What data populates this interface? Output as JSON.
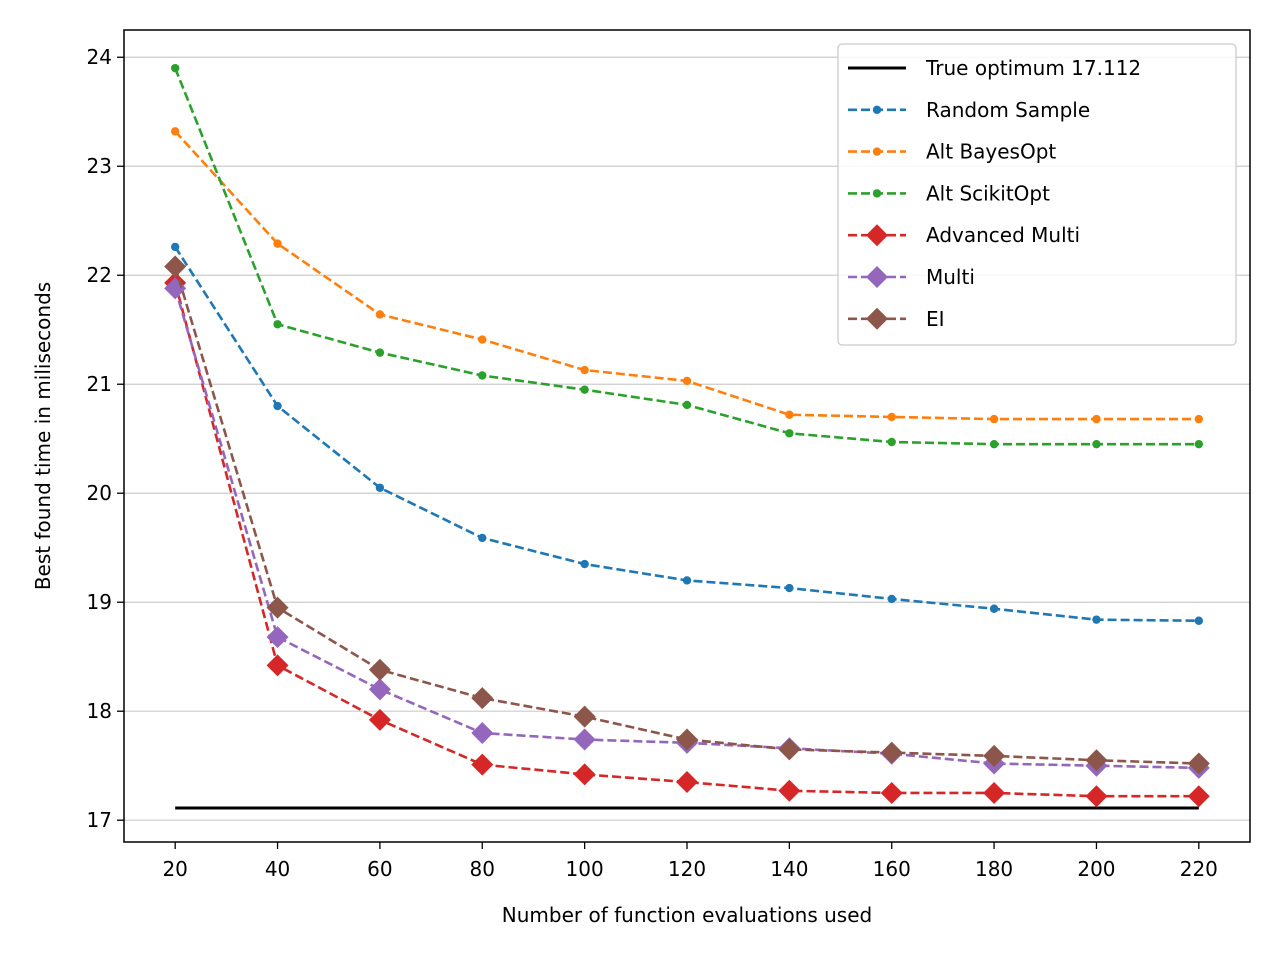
{
  "chart_data": {
    "type": "line",
    "title": "",
    "xlabel": "Number of function evaluations used",
    "ylabel": "Best found time in miliseconds",
    "xlim": [
      10,
      230
    ],
    "ylim": [
      16.8,
      24.25
    ],
    "x_ticks": [
      20,
      40,
      60,
      80,
      100,
      120,
      140,
      160,
      180,
      200,
      220
    ],
    "y_ticks": [
      17,
      18,
      19,
      20,
      21,
      22,
      23,
      24
    ],
    "grid": "horizontal",
    "legend_position": "top-right",
    "x": [
      20,
      40,
      60,
      80,
      100,
      120,
      140,
      160,
      180,
      200,
      220
    ],
    "reference_line": {
      "name": "True optimum 17.112",
      "value": 17.112,
      "x_range": [
        20,
        220
      ],
      "color": "#000000"
    },
    "series": [
      {
        "name": "Random Sample",
        "color": "#1f77b4",
        "marker": "dot",
        "values": [
          22.26,
          20.8,
          20.05,
          19.59,
          19.35,
          19.2,
          19.13,
          19.03,
          18.94,
          18.84,
          18.83
        ]
      },
      {
        "name": "Alt BayesOpt",
        "color": "#ff7f0e",
        "marker": "dot",
        "values": [
          23.32,
          22.29,
          21.64,
          21.41,
          21.13,
          21.03,
          20.72,
          20.7,
          20.68,
          20.68,
          20.68
        ]
      },
      {
        "name": "Alt ScikitOpt",
        "color": "#2ca02c",
        "marker": "dot",
        "values": [
          23.9,
          21.55,
          21.29,
          21.08,
          20.95,
          20.81,
          20.55,
          20.47,
          20.45,
          20.45,
          20.45
        ]
      },
      {
        "name": "Advanced Multi",
        "color": "#d62728",
        "marker": "diamond",
        "values": [
          21.93,
          18.42,
          17.92,
          17.51,
          17.42,
          17.35,
          17.27,
          17.25,
          17.25,
          17.22,
          17.22
        ]
      },
      {
        "name": "Multi",
        "color": "#9467bd",
        "marker": "diamond",
        "values": [
          21.88,
          18.68,
          18.2,
          17.8,
          17.74,
          17.71,
          17.66,
          17.61,
          17.52,
          17.5,
          17.48
        ]
      },
      {
        "name": "EI",
        "color": "#8c564b",
        "marker": "diamond",
        "values": [
          22.08,
          18.95,
          18.38,
          18.12,
          17.95,
          17.74,
          17.65,
          17.62,
          17.59,
          17.55,
          17.52
        ]
      }
    ]
  }
}
